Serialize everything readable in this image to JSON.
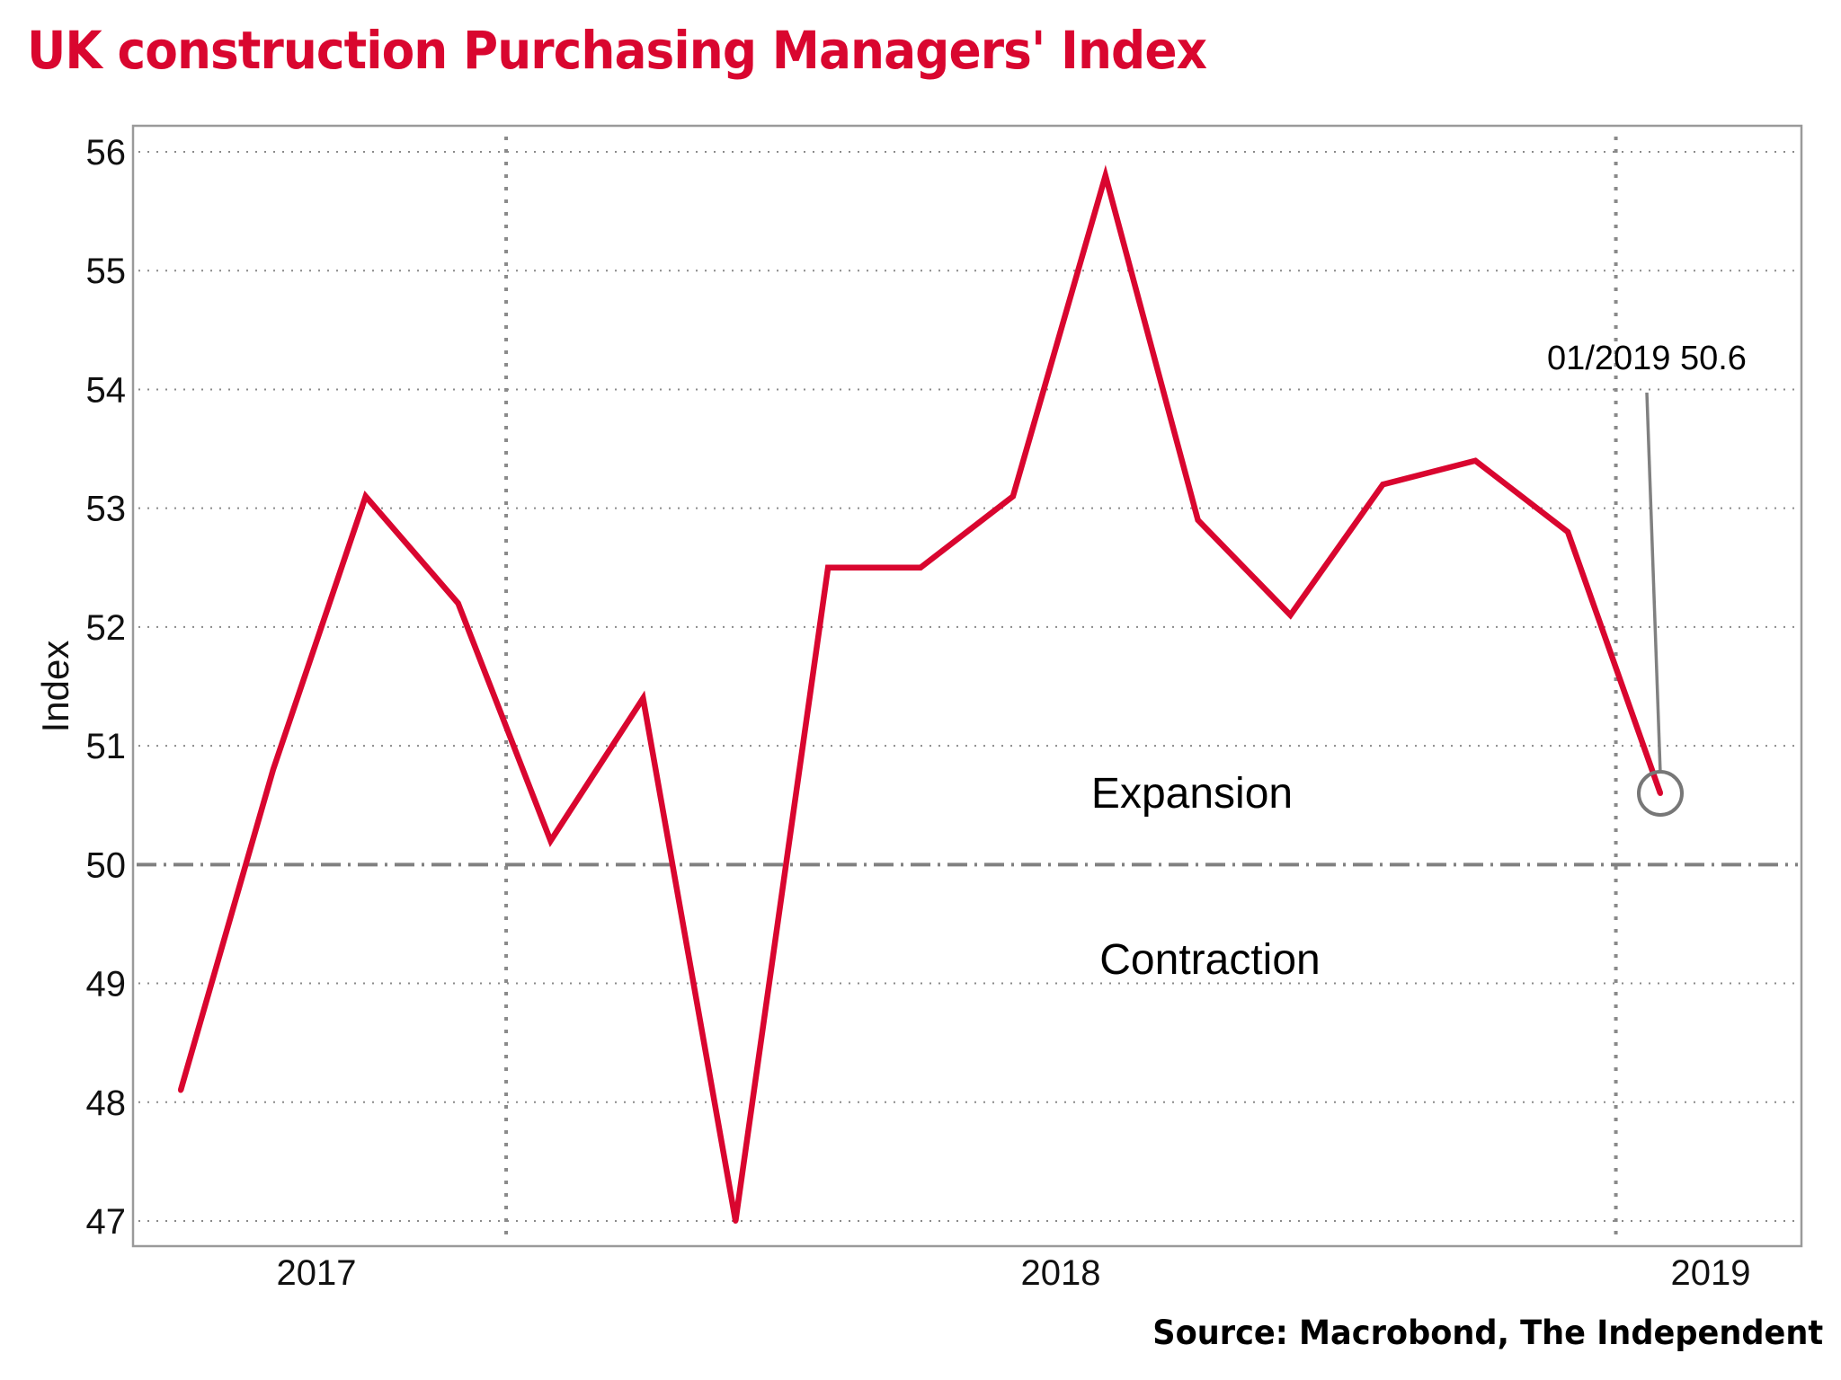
{
  "header": {
    "title": "UK construction Purchasing Managers' Index"
  },
  "footer": {
    "source": "Source: Macrobond, The Independent"
  },
  "colors": {
    "title": "#d9062f",
    "series": "#d9062f",
    "grid": "#8a8a8a",
    "reference_line": "#808080",
    "frame": "#9a9a9a"
  },
  "chart_data": {
    "type": "line",
    "title": "UK construction Purchasing Managers' Index",
    "xlabel": "",
    "ylabel": "Index",
    "ylim": [
      47,
      56
    ],
    "yticks": [
      47,
      48,
      49,
      50,
      51,
      52,
      53,
      54,
      55,
      56
    ],
    "grid": true,
    "x": [
      "09/2017",
      "10/2017",
      "11/2017",
      "12/2017",
      "01/2018",
      "02/2018",
      "03/2018",
      "04/2018",
      "05/2018",
      "06/2018",
      "07/2018",
      "08/2018",
      "09/2018",
      "10/2018",
      "11/2018",
      "12/2018",
      "01/2019"
    ],
    "xtick_labels": [
      "2017",
      "2018",
      "2019"
    ],
    "series": [
      {
        "name": "UK construction PMI",
        "values": [
          48.1,
          50.8,
          53.1,
          52.2,
          50.2,
          51.4,
          47.0,
          52.5,
          52.5,
          53.1,
          55.8,
          52.9,
          52.1,
          53.2,
          53.4,
          52.8,
          50.6
        ]
      }
    ],
    "reference_line": {
      "y": 50,
      "style": "dash-dot"
    },
    "annotations": [
      {
        "text": "Expansion",
        "y": 50.6
      },
      {
        "text": "Contraction",
        "y": 49.2
      },
      {
        "text": "01/2019 50.6",
        "x": "01/2019",
        "y": 50.6,
        "marker": "circle"
      }
    ],
    "legend": "none"
  }
}
